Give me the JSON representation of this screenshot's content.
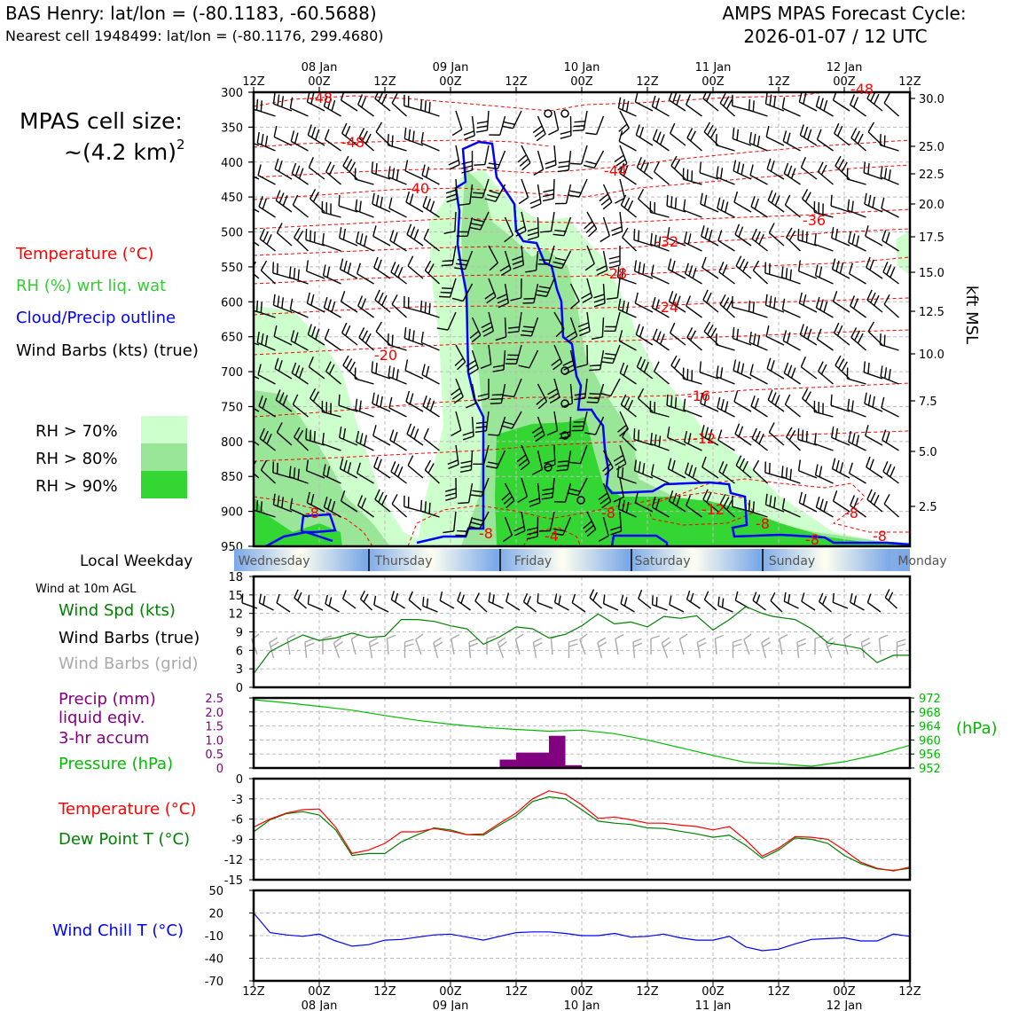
{
  "header": {
    "station_line": "BAS Henry: lat/lon = (-80.1183, -60.5688)",
    "cell_line": "Nearest cell 1948499: lat/lon = (-80.1176, 299.4680)",
    "cycle_title": "AMPS MPAS Forecast Cycle:",
    "cycle_time": "2026-01-07 / 12 UTC"
  },
  "side": {
    "cell_size_label": "MPAS cell size:",
    "cell_size_value": "~(4.2 km)",
    "cell_size_exp": "2",
    "legend_temp": "Temperature (°C)",
    "legend_rh": "RH (%) wrt liq. wat",
    "legend_cloud": "Cloud/Precip outline",
    "legend_wind": "Wind Barbs (kts) (true)",
    "rh70": "RH > 70%",
    "rh80": "RH > 80%",
    "rh90": "RH > 90%",
    "local_weekday": "Local Weekday",
    "wind10m": "Wind at 10m AGL",
    "wind_spd": "Wind Spd (kts)",
    "barbs_true": "Wind Barbs (true)",
    "barbs_grid": "Wind Barbs (grid)",
    "precip1": "Precip (mm)",
    "precip2": "liquid eqiv.",
    "precip3": "3-hr accum",
    "pressure": "Pressure (hPa)",
    "temp": "Temperature (°C)",
    "dewpt": "Dew Point T (°C)",
    "windchill": "Wind Chill T (°C)",
    "hpa_unit": "(hPa)",
    "kft_label": "kft MSL"
  },
  "colors": {
    "temp": "#ff0000",
    "rh": "#33cc33",
    "cloud": "#0000ff",
    "precip": "#800080",
    "pressure": "#00bb00",
    "dew": "#008000",
    "rh70": "#ccffcc",
    "rh80": "#99e699",
    "rh90": "#33d633"
  },
  "chart_data": [
    {
      "id": "cross_section",
      "type": "heatmap",
      "x_ticks_top": [
        "12Z",
        "00Z",
        "12Z",
        "00Z",
        "12Z",
        "00Z",
        "12Z",
        "00Z",
        "12Z",
        "00Z",
        "12Z"
      ],
      "date_labels": [
        "08 Jan",
        "09 Jan",
        "10 Jan",
        "11 Jan",
        "12 Jan"
      ],
      "y_pressure_ticks": [
        300,
        350,
        400,
        450,
        500,
        550,
        600,
        650,
        700,
        750,
        800,
        850,
        900,
        950
      ],
      "y_kft_ticks": [
        "30.0",
        "25.0",
        "22.5",
        "20.0",
        "17.5",
        "15.0",
        "12.5",
        "10.0",
        "7.5",
        "5.0",
        "2.5"
      ],
      "temp_labels": [
        "-48",
        "-48",
        "-48",
        "-44",
        "-40",
        "-36",
        "-32",
        "-28",
        "-24",
        "-20",
        "-16",
        "-12",
        "-12",
        "-8",
        "-8",
        "-8",
        "-8",
        "-8",
        "-4",
        "-8",
        "-8"
      ],
      "ylim_hPa": [
        300,
        950
      ],
      "xlim_hours": [
        0,
        120
      ]
    },
    {
      "id": "weekday_bar",
      "type": "table",
      "days": [
        "Wednesday",
        "Thursday",
        "Friday",
        "Saturday",
        "Sunday",
        "Monday"
      ]
    },
    {
      "id": "wind_speed",
      "type": "line",
      "ylabel": "Wind Spd (kts)",
      "ylim": [
        0,
        18
      ],
      "yticks": [
        "18",
        "15",
        "12",
        "9",
        "6",
        "3",
        "0"
      ],
      "x_hours": [
        0,
        3,
        6,
        9,
        12,
        15,
        18,
        21,
        24,
        27,
        30,
        33,
        36,
        39,
        42,
        45,
        48,
        51,
        54,
        57,
        60,
        63,
        66,
        69,
        72,
        75,
        78,
        81,
        84,
        87,
        90,
        93,
        95,
        99,
        102,
        105,
        108,
        111,
        114,
        117,
        120
      ],
      "values": [
        2.2,
        5.8,
        7.2,
        8.5,
        7.6,
        8.0,
        8.8,
        8.1,
        8.3,
        11.0,
        11.0,
        10.7,
        10.0,
        9.5,
        7.0,
        8.2,
        9.8,
        9.5,
        8.0,
        8.6,
        10.0,
        11.9,
        10.3,
        10.6,
        9.8,
        11.5,
        11.2,
        11.6,
        9.3,
        11.0,
        13.1,
        12.0,
        11.5,
        11.0,
        9.5,
        7.2,
        6.8,
        6.3,
        4.0,
        5.2,
        5.2
      ]
    },
    {
      "id": "precip_pressure",
      "type": "bar",
      "precip_ylim": [
        0,
        2.5
      ],
      "precip_yticks": [
        "2.5",
        "2.0",
        "1.5",
        "1.0",
        "0.5",
        "0"
      ],
      "pressure_ylim": [
        952,
        972
      ],
      "pressure_yticks": [
        "972",
        "968",
        "964",
        "960",
        "956",
        "952"
      ],
      "precip_bars": [
        {
          "start_hour": 45,
          "end_hour": 48,
          "value": 0.3
        },
        {
          "start_hour": 48,
          "end_hour": 54,
          "value": 0.55
        },
        {
          "start_hour": 54,
          "end_hour": 57,
          "value": 1.15
        },
        {
          "start_hour": 57,
          "end_hour": 60,
          "value": 0.1
        }
      ],
      "pressure_x_hours": [
        0,
        6,
        12,
        18,
        24,
        30,
        36,
        42,
        48,
        54,
        60,
        66,
        72,
        78,
        84,
        90,
        96,
        102,
        108,
        114,
        120
      ],
      "pressure_values": [
        971.5,
        970.6,
        969.6,
        968.5,
        967.0,
        965.6,
        964.5,
        963.6,
        963.0,
        962.5,
        962.8,
        961.8,
        960.0,
        957.8,
        955.6,
        953.6,
        953.2,
        952.5,
        953.8,
        955.8,
        958.5
      ]
    },
    {
      "id": "temp_dew",
      "type": "line",
      "ylim": [
        -15,
        0
      ],
      "yticks": [
        "0",
        "-3",
        "-6",
        "-9",
        "-12",
        "-15"
      ],
      "x_hours": [
        0,
        3,
        6,
        9,
        12,
        15,
        18,
        21,
        24,
        27,
        30,
        33,
        36,
        39,
        42,
        45,
        48,
        51,
        54,
        57,
        60,
        63,
        66,
        69,
        72,
        75,
        78,
        81,
        84,
        87,
        90,
        93,
        96,
        99,
        102,
        105,
        108,
        111,
        114,
        117,
        120
      ],
      "series": [
        {
          "name": "Temperature",
          "values": [
            -7.2,
            -6.0,
            -5.1,
            -4.6,
            -4.5,
            -7.2,
            -11.1,
            -10.6,
            -9.6,
            -7.9,
            -7.9,
            -7.4,
            -7.8,
            -8.3,
            -8.2,
            -6.6,
            -5.1,
            -3.0,
            -1.8,
            -2.3,
            -3.9,
            -5.9,
            -5.7,
            -6.1,
            -6.6,
            -6.6,
            -6.9,
            -7.1,
            -7.6,
            -7.1,
            -9.1,
            -11.5,
            -10.3,
            -8.6,
            -8.7,
            -9.0,
            -10.6,
            -12.4,
            -13.3,
            -13.7,
            -13.1
          ]
        },
        {
          "name": "Dew Point",
          "values": [
            -7.9,
            -6.1,
            -5.2,
            -4.9,
            -5.4,
            -7.6,
            -11.4,
            -11.1,
            -11.1,
            -9.4,
            -8.3,
            -7.3,
            -7.6,
            -8.3,
            -8.4,
            -6.9,
            -5.5,
            -3.4,
            -2.7,
            -3.0,
            -4.6,
            -6.3,
            -6.6,
            -6.8,
            -7.3,
            -7.4,
            -7.8,
            -8.2,
            -8.7,
            -8.4,
            -9.9,
            -11.8,
            -10.6,
            -8.8,
            -9.0,
            -9.6,
            -11.4,
            -12.6,
            -13.4,
            -13.6,
            -13.3
          ]
        }
      ]
    },
    {
      "id": "wind_chill",
      "type": "line",
      "ylim": [
        -70,
        50
      ],
      "yticks": [
        "50",
        "20",
        "-10",
        "-40",
        "-70"
      ],
      "x_hours": [
        0,
        3,
        6,
        9,
        12,
        15,
        18,
        21,
        24,
        27,
        30,
        33,
        36,
        39,
        42,
        45,
        48,
        51,
        54,
        57,
        60,
        63,
        66,
        69,
        72,
        75,
        78,
        81,
        84,
        87,
        90,
        93,
        96,
        99,
        102,
        105,
        108,
        111,
        114,
        117,
        120
      ],
      "values": [
        20,
        -6,
        -9,
        -11,
        -8,
        -17,
        -24,
        -22,
        -16,
        -15,
        -12,
        -9,
        -8,
        -12,
        -16,
        -11,
        -6,
        -5,
        -5,
        -7,
        -10,
        -10,
        -7,
        -12,
        -11,
        -8,
        -13,
        -16,
        -16,
        -11,
        -25,
        -30,
        -28,
        -21,
        -15,
        -14,
        -13,
        -17,
        -17,
        -8,
        -11
      ]
    }
  ],
  "x_axis_bottom": {
    "ticks": [
      "12Z",
      "00Z",
      "12Z",
      "00Z",
      "12Z",
      "00Z",
      "12Z",
      "00Z",
      "12Z",
      "00Z",
      "12Z"
    ],
    "dates": [
      "08 Jan",
      "09 Jan",
      "10 Jan",
      "11 Jan",
      "12 Jan"
    ]
  }
}
